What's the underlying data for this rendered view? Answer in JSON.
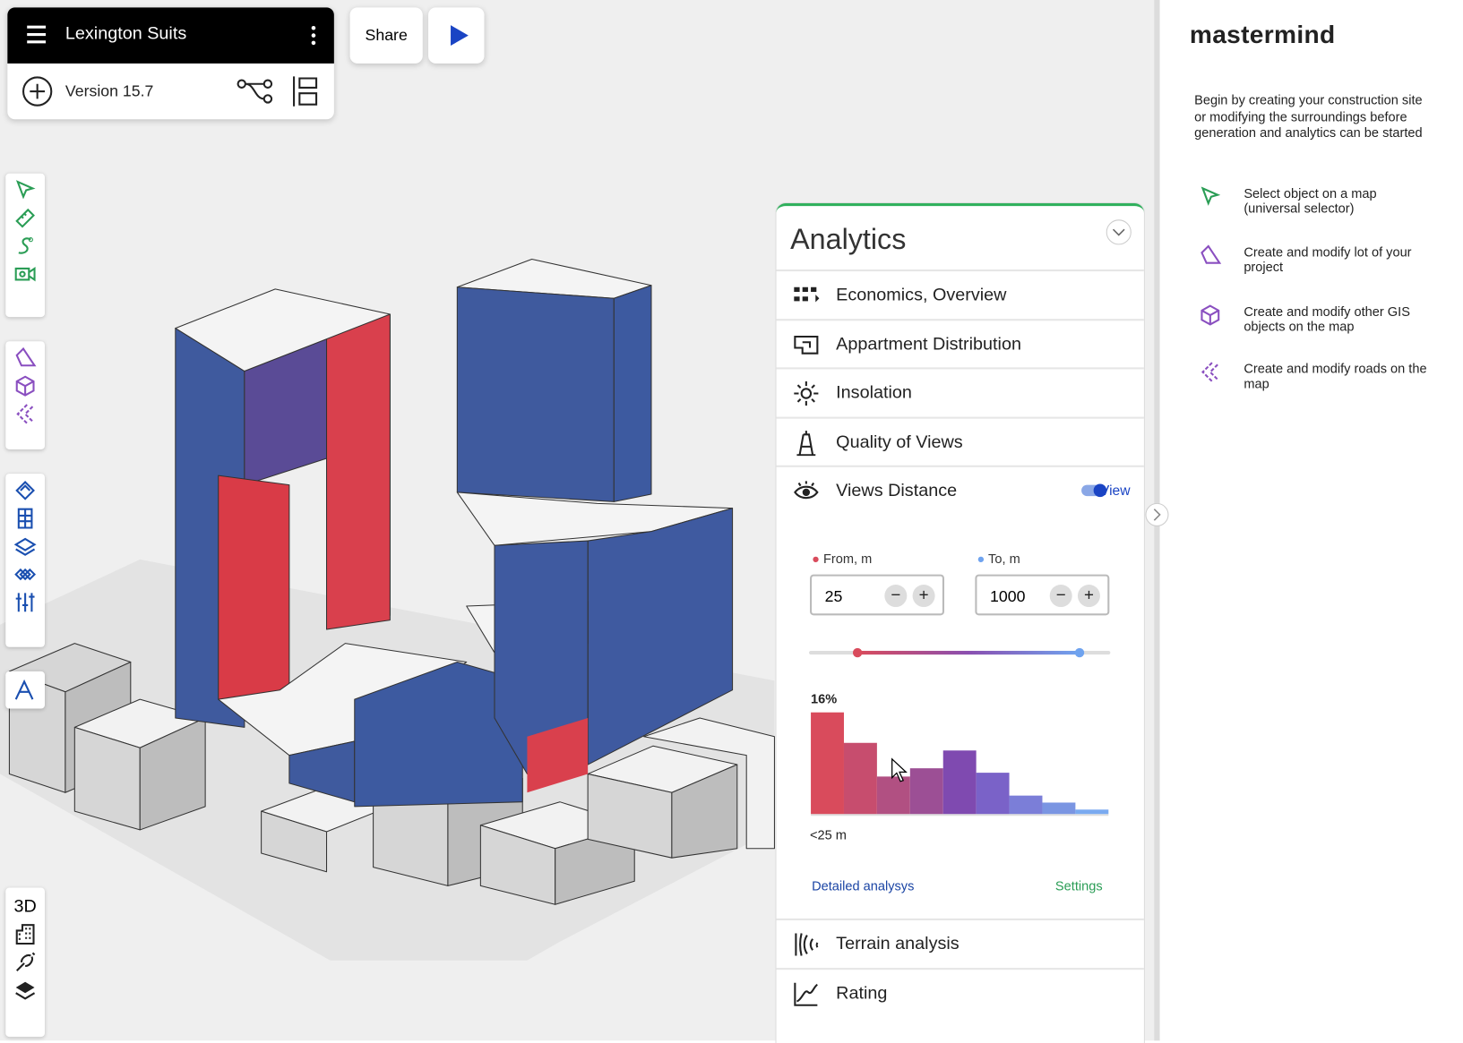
{
  "header": {
    "project": "Lexington Suits",
    "version": "Version 15.7",
    "share": "Share"
  },
  "brand": "mastermind",
  "help": {
    "intro": "Begin by creating your construction site or modifying the surroundings before generation and analytics can be started",
    "items": [
      "Select object on a map (universal selector)",
      "Create and modify lot of your project",
      "Create and modify other GIS objects on the map",
      "Create and modify roads on the map"
    ]
  },
  "view_mode": "3D",
  "analytics": {
    "title": "Analytics",
    "sections": [
      "Economics, Overview",
      "Appartment Distribution",
      "Insolation",
      "Quality of Views",
      "Views Distance",
      "Terrain analysis",
      "Rating"
    ],
    "views_distance": {
      "toggle": "View",
      "from_label": "From, m",
      "from_value": 25,
      "to_label": "To, m",
      "to_value": 1000,
      "chart": {
        "type": "bar",
        "values": [
          16,
          11.2,
          5.9,
          7.2,
          10,
          6.5,
          2.9,
          1.8,
          0.7
        ],
        "value_labels": [
          "16%",
          null,
          null,
          null,
          null,
          null,
          null,
          null,
          null
        ],
        "colors": [
          "#d94b5c",
          "#c74d6e",
          "#b15082",
          "#9c4f95",
          "#7f4ab0",
          "#7a62c8",
          "#7b7ed8",
          "#7a95e2",
          "#7aaaf0"
        ],
        "ylim": [
          0,
          16
        ],
        "x_label": "<25 m"
      },
      "detail_link": "Detailed analysys",
      "settings_link": "Settings"
    }
  }
}
